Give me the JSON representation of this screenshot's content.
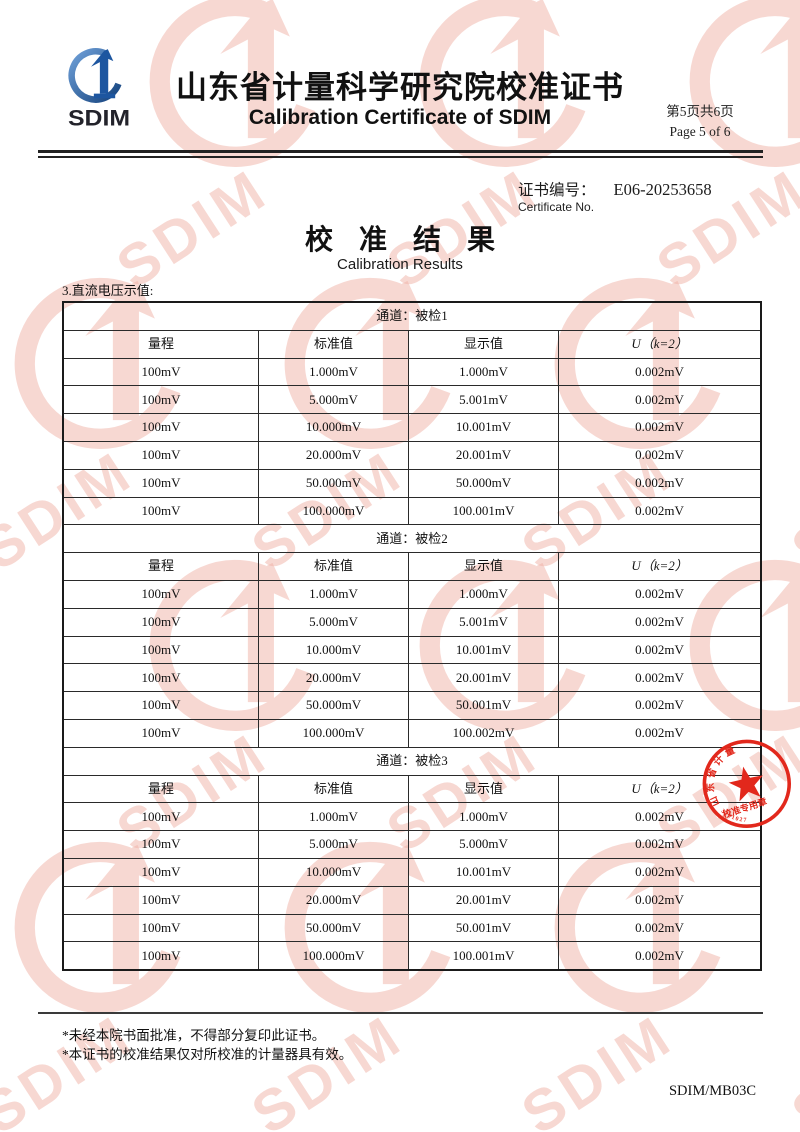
{
  "header": {
    "logo_text": "SDIM",
    "title_zh": "山东省计量科学研究院校准证书",
    "title_en": "Calibration Certificate of SDIM",
    "page_info_zh": "第5页共6页",
    "page_info_en": "Page 5 of 6"
  },
  "certificate": {
    "no_label_zh": "证书编号：",
    "no_value": "E06-20253658",
    "no_label_en": "Certificate No.",
    "results_title_zh": "校准结果",
    "results_title_en": "Calibration Results"
  },
  "section_label": "3.直流电压示值:",
  "tables": [
    {
      "channel": "通道：被检1",
      "columns": [
        "量程",
        "标准值",
        "显示值",
        "U（k=2）"
      ],
      "rows": [
        [
          "100mV",
          "1.000mV",
          "1.000mV",
          "0.002mV"
        ],
        [
          "100mV",
          "5.000mV",
          "5.001mV",
          "0.002mV"
        ],
        [
          "100mV",
          "10.000mV",
          "10.001mV",
          "0.002mV"
        ],
        [
          "100mV",
          "20.000mV",
          "20.001mV",
          "0.002mV"
        ],
        [
          "100mV",
          "50.000mV",
          "50.000mV",
          "0.002mV"
        ],
        [
          "100mV",
          "100.000mV",
          "100.001mV",
          "0.002mV"
        ]
      ]
    },
    {
      "channel": "通道：被检2",
      "columns": [
        "量程",
        "标准值",
        "显示值",
        "U（k=2）"
      ],
      "rows": [
        [
          "100mV",
          "1.000mV",
          "1.000mV",
          "0.002mV"
        ],
        [
          "100mV",
          "5.000mV",
          "5.001mV",
          "0.002mV"
        ],
        [
          "100mV",
          "10.000mV",
          "10.001mV",
          "0.002mV"
        ],
        [
          "100mV",
          "20.000mV",
          "20.001mV",
          "0.002mV"
        ],
        [
          "100mV",
          "50.000mV",
          "50.001mV",
          "0.002mV"
        ],
        [
          "100mV",
          "100.000mV",
          "100.002mV",
          "0.002mV"
        ]
      ]
    },
    {
      "channel": "通道：被检3",
      "columns": [
        "量程",
        "标准值",
        "显示值",
        "U（k=2）"
      ],
      "rows": [
        [
          "100mV",
          "1.000mV",
          "1.000mV",
          "0.002mV"
        ],
        [
          "100mV",
          "5.000mV",
          "5.000mV",
          "0.002mV"
        ],
        [
          "100mV",
          "10.000mV",
          "10.001mV",
          "0.002mV"
        ],
        [
          "100mV",
          "20.000mV",
          "20.001mV",
          "0.002mV"
        ],
        [
          "100mV",
          "50.000mV",
          "50.001mV",
          "0.002mV"
        ],
        [
          "100mV",
          "100.000mV",
          "100.001mV",
          "0.002mV"
        ]
      ]
    }
  ],
  "footer": {
    "notes": [
      "*未经本院书面批准，不得部分复印此证书。",
      "*本证书的校准结果仅对所校准的计量器具有效。"
    ],
    "doc_code": "SDIM/MB03C"
  },
  "stamp": {
    "arc_text": "山东省计量",
    "label": "校准专用章",
    "number": "3701027"
  },
  "watermark_text": "SDIM",
  "colors": {
    "logo_blue": "#1f5fa8",
    "stamp_red": "#e2281c",
    "watermark_pink": "#f0b2a7"
  }
}
